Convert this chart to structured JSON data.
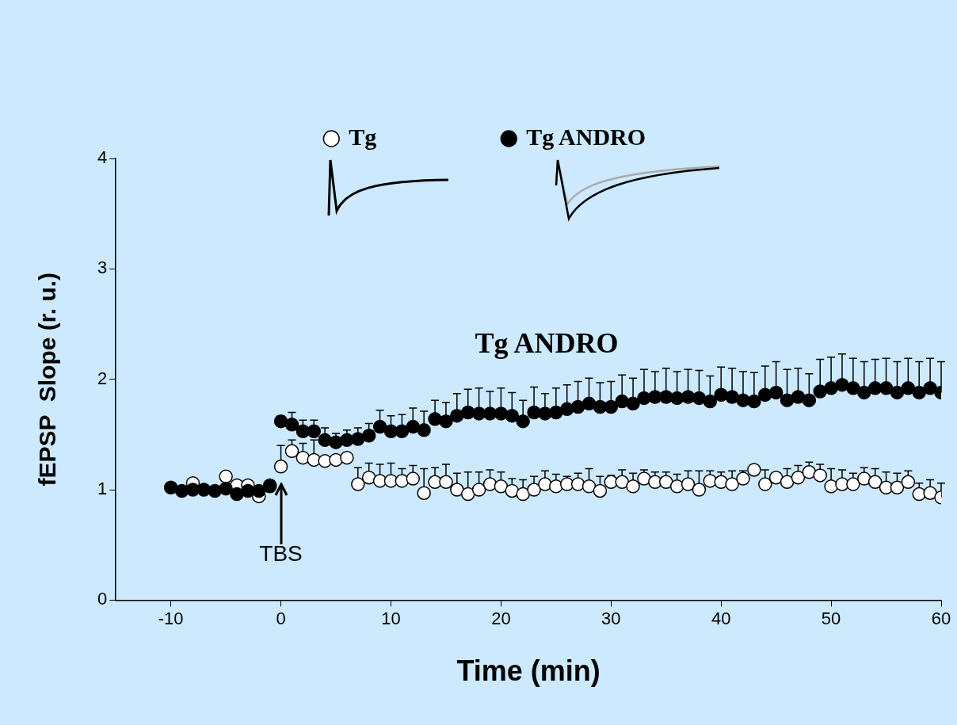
{
  "chart_data": {
    "type": "scatter",
    "xlabel": "Time (min)",
    "ylabel": "fEPSP  Slope (r. u.)",
    "x": [
      -10,
      -9,
      -8,
      -7,
      -6,
      -5,
      -4,
      -3,
      -2,
      -1,
      0,
      1,
      2,
      3,
      4,
      5,
      6,
      7,
      8,
      9,
      10,
      11,
      12,
      13,
      14,
      15,
      16,
      17,
      18,
      19,
      20,
      21,
      22,
      23,
      24,
      25,
      26,
      27,
      28,
      29,
      30,
      31,
      32,
      33,
      34,
      35,
      36,
      37,
      38,
      39,
      40,
      41,
      42,
      43,
      44,
      45,
      46,
      47,
      48,
      49,
      50,
      51,
      52,
      53,
      54,
      55,
      56,
      57,
      58,
      59,
      60
    ],
    "series": [
      {
        "name": "Tg",
        "color": "#ffffff",
        "values": [
          null,
          null,
          1.06,
          null,
          null,
          1.12,
          1.04,
          1.04,
          0.94,
          1.04,
          1.21,
          1.35,
          1.29,
          1.27,
          1.26,
          1.27,
          1.29,
          1.05,
          1.11,
          1.08,
          1.08,
          1.08,
          1.1,
          0.97,
          1.07,
          1.07,
          1.0,
          0.96,
          1.0,
          1.05,
          1.03,
          0.99,
          0.96,
          1.0,
          1.05,
          1.03,
          1.05,
          1.05,
          1.03,
          0.99,
          1.07,
          1.07,
          1.03,
          1.1,
          1.07,
          1.07,
          1.03,
          1.05,
          1.0,
          1.08,
          1.07,
          1.05,
          1.1,
          1.18,
          1.05,
          1.11,
          1.07,
          1.11,
          1.16,
          1.13,
          1.03,
          1.05,
          1.05,
          1.1,
          1.07,
          1.02,
          1.02,
          1.07,
          0.96,
          0.97,
          0.93
        ],
        "errors": [
          null,
          null,
          null,
          null,
          null,
          null,
          null,
          null,
          null,
          null,
          [
            1.21,
            1.4
          ],
          [
            1.35,
            1.45
          ],
          [
            1.29,
            1.42
          ],
          [
            1.27,
            1.45
          ],
          null,
          null,
          null,
          [
            1.05,
            1.2
          ],
          [
            1.11,
            1.24
          ],
          [
            1.08,
            1.23
          ],
          [
            1.08,
            1.24
          ],
          [
            1.08,
            1.19
          ],
          [
            1.1,
            1.22
          ],
          [
            0.97,
            1.19
          ],
          [
            1.07,
            1.2
          ],
          [
            1.07,
            1.23
          ],
          [
            1.0,
            1.15
          ],
          [
            0.96,
            1.16
          ],
          [
            1.0,
            1.16
          ],
          [
            1.05,
            1.18
          ],
          [
            1.03,
            1.16
          ],
          [
            0.99,
            1.1
          ],
          [
            0.96,
            1.09
          ],
          [
            1.0,
            1.12
          ],
          [
            1.05,
            1.17
          ],
          [
            1.03,
            1.14
          ],
          [
            1.05,
            1.12
          ],
          [
            1.05,
            1.15
          ],
          [
            1.03,
            1.19
          ],
          [
            0.99,
            1.12
          ],
          [
            1.07,
            1.13
          ],
          [
            1.07,
            1.18
          ],
          [
            1.03,
            1.15
          ],
          [
            1.1,
            1.18
          ],
          [
            1.07,
            1.16
          ],
          [
            1.07,
            1.16
          ],
          [
            1.03,
            1.14
          ],
          [
            1.05,
            1.17
          ],
          [
            1.0,
            1.17
          ],
          [
            1.08,
            1.17
          ],
          [
            1.07,
            1.16
          ],
          [
            1.05,
            1.17
          ],
          [
            1.1,
            1.17
          ],
          null,
          [
            1.05,
            1.18
          ],
          null,
          [
            1.07,
            1.19
          ],
          [
            1.11,
            1.22
          ],
          [
            1.16,
            1.25
          ],
          [
            1.13,
            1.23
          ],
          [
            1.03,
            1.19
          ],
          [
            1.05,
            1.18
          ],
          [
            1.05,
            1.15
          ],
          [
            1.1,
            1.2
          ],
          [
            1.07,
            1.19
          ],
          [
            1.02,
            1.16
          ],
          [
            1.02,
            1.15
          ],
          [
            1.07,
            1.17
          ],
          [
            0.96,
            1.06
          ],
          [
            0.97,
            1.09
          ],
          [
            0.93,
            1.06
          ]
        ]
      },
      {
        "name": "Tg ANDRO",
        "color": "#000000",
        "values": [
          1.02,
          0.99,
          1.0,
          1.0,
          0.99,
          1.01,
          0.96,
          0.99,
          0.99,
          1.03,
          1.62,
          1.59,
          1.53,
          1.53,
          1.45,
          1.43,
          1.45,
          1.46,
          1.49,
          1.57,
          1.53,
          1.53,
          1.57,
          1.54,
          1.64,
          1.62,
          1.67,
          1.7,
          1.69,
          1.69,
          1.69,
          1.67,
          1.62,
          1.7,
          1.69,
          1.7,
          1.73,
          1.75,
          1.78,
          1.75,
          1.75,
          1.8,
          1.78,
          1.83,
          1.84,
          1.84,
          1.83,
          1.84,
          1.83,
          1.8,
          1.86,
          1.84,
          1.81,
          1.8,
          1.86,
          1.88,
          1.81,
          1.84,
          1.81,
          1.89,
          1.92,
          1.95,
          1.92,
          1.88,
          1.92,
          1.92,
          1.88,
          1.92,
          1.88,
          1.92,
          1.88
        ],
        "errors": [
          null,
          null,
          null,
          null,
          null,
          null,
          null,
          null,
          null,
          null,
          [
            1.62,
            1.67
          ],
          [
            1.59,
            1.7
          ],
          [
            1.53,
            1.63
          ],
          [
            1.53,
            1.63
          ],
          [
            1.45,
            1.56
          ],
          [
            1.43,
            1.51
          ],
          [
            1.45,
            1.54
          ],
          [
            1.46,
            1.56
          ],
          [
            1.49,
            1.6
          ],
          [
            1.57,
            1.72
          ],
          [
            1.53,
            1.67
          ],
          [
            1.53,
            1.68
          ],
          [
            1.57,
            1.74
          ],
          [
            1.54,
            1.71
          ],
          [
            1.64,
            1.81
          ],
          [
            1.62,
            1.79
          ],
          [
            1.67,
            1.87
          ],
          [
            1.7,
            1.91
          ],
          [
            1.69,
            1.92
          ],
          [
            1.69,
            1.89
          ],
          [
            1.69,
            1.92
          ],
          [
            1.67,
            1.88
          ],
          [
            1.62,
            1.81
          ],
          [
            1.7,
            1.93
          ],
          [
            1.69,
            1.87
          ],
          [
            1.7,
            1.92
          ],
          [
            1.73,
            1.95
          ],
          [
            1.75,
            1.98
          ],
          [
            1.78,
            2.01
          ],
          [
            1.75,
            1.97
          ],
          [
            1.75,
            1.98
          ],
          [
            1.8,
            2.04
          ],
          [
            1.78,
            2.01
          ],
          [
            1.83,
            2.09
          ],
          [
            1.84,
            2.07
          ],
          [
            1.84,
            2.1
          ],
          [
            1.83,
            2.07
          ],
          [
            1.84,
            2.09
          ],
          [
            1.83,
            2.08
          ],
          [
            1.8,
            2.03
          ],
          [
            1.86,
            2.11
          ],
          [
            1.84,
            2.1
          ],
          [
            1.81,
            2.07
          ],
          [
            1.8,
            2.06
          ],
          [
            1.86,
            2.12
          ],
          [
            1.88,
            2.16
          ],
          [
            1.81,
            2.09
          ],
          [
            1.84,
            2.1
          ],
          [
            1.81,
            2.05
          ],
          [
            1.89,
            2.18
          ],
          [
            1.92,
            2.2
          ],
          [
            1.95,
            2.23
          ],
          [
            1.92,
            2.19
          ],
          [
            1.88,
            2.16
          ],
          [
            1.92,
            2.18
          ],
          [
            1.92,
            2.19
          ],
          [
            1.88,
            2.16
          ],
          [
            1.92,
            2.19
          ],
          [
            1.88,
            2.16
          ],
          [
            1.92,
            2.19
          ],
          [
            1.88,
            2.16
          ]
        ]
      }
    ],
    "xlim": [
      -15,
      60
    ],
    "xticks": [
      -10,
      0,
      10,
      20,
      30,
      40,
      50,
      60
    ],
    "ylim": [
      0,
      4
    ],
    "yticks": [
      0,
      1,
      2,
      3,
      4
    ],
    "grid": false,
    "legend": "top",
    "marker": "circle",
    "annotations": [
      "Tg ANDRO",
      {
        "text": "TBS",
        "x": 0
      }
    ]
  }
}
